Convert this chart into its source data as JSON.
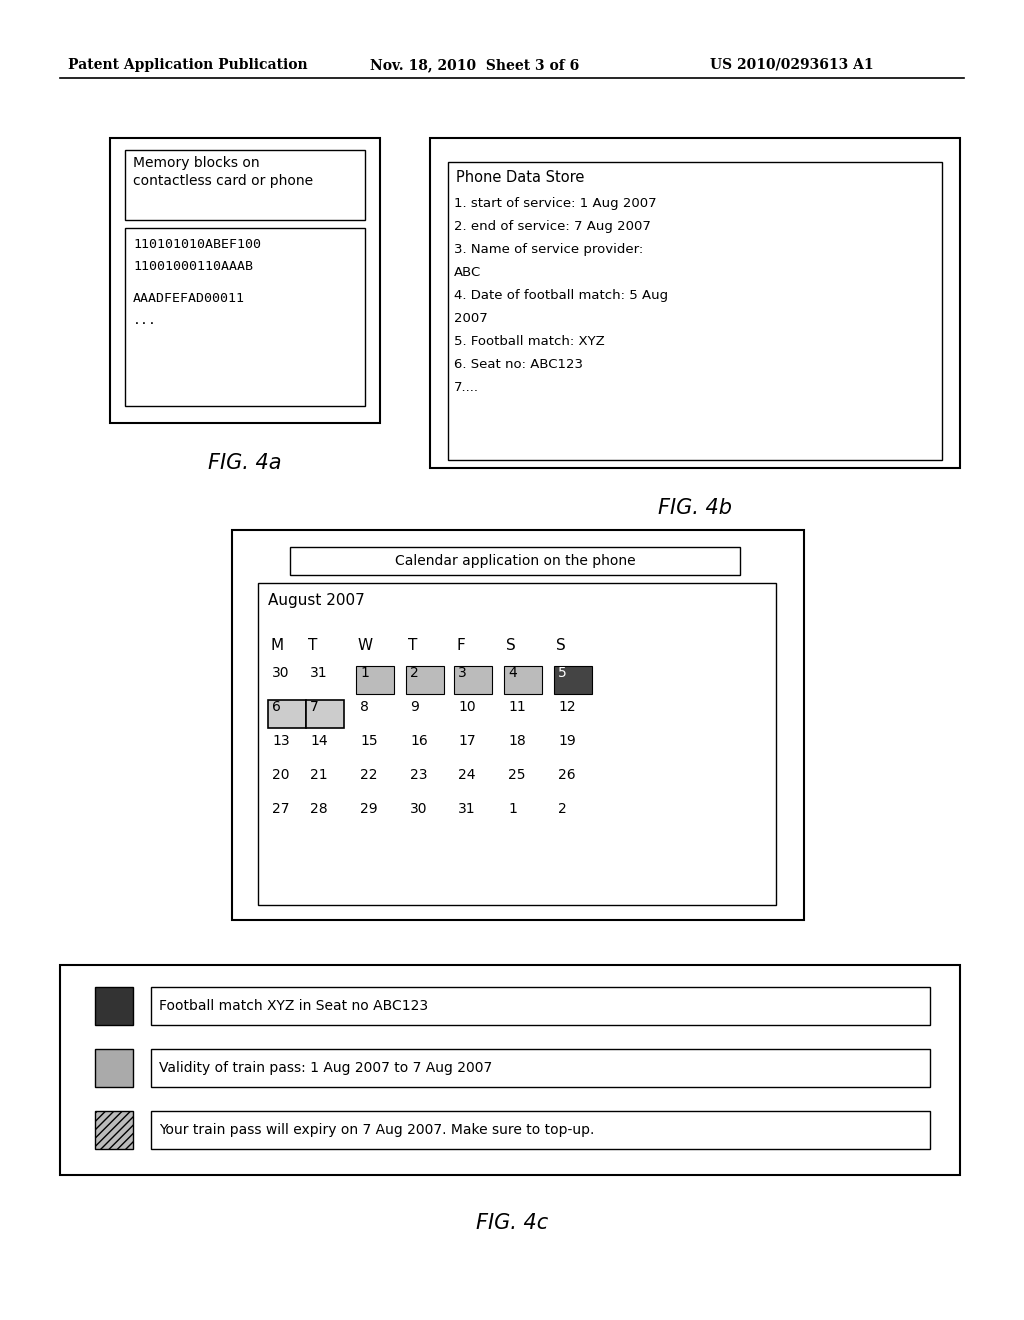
{
  "header_left": "Patent Application Publication",
  "header_mid": "Nov. 18, 2010  Sheet 3 of 6",
  "header_right": "US 2010/0293613 A1",
  "fig4a_title": "Memory blocks on\ncontactless card or phone",
  "fig4a_data_lines": [
    "110101010ABEF100",
    "11001000110AAAB",
    "",
    "AAADFEFAD00011",
    "..."
  ],
  "fig4a_caption": "FIG. 4a",
  "fig4b_title": "Phone Data Store",
  "fig4b_data": [
    "1. start of service: 1 Aug 2007",
    "2. end of service: 7 Aug 2007",
    "3. Name of service provider:",
    "ABC",
    "4. Date of football match: 5 Aug",
    "2007",
    "5. Football match: XYZ",
    "6. Seat no: ABC123",
    "7...."
  ],
  "fig4b_caption": "FIG. 4b",
  "fig4c_caption": "FIG. 4c",
  "calendar_title": "Calendar application on the phone",
  "calendar_month": "August 2007",
  "calendar_days_header": [
    "M",
    "T",
    "W",
    "T",
    "F",
    "S",
    "S"
  ],
  "calendar_rows": [
    [
      "30",
      "31",
      "1",
      "2",
      "3",
      "4",
      "5"
    ],
    [
      "6",
      "7",
      "8",
      "9",
      "10",
      "11",
      "12"
    ],
    [
      "13",
      "14",
      "15",
      "16",
      "17",
      "18",
      "19"
    ],
    [
      "20",
      "21",
      "22",
      "23",
      "24",
      "25",
      "26"
    ],
    [
      "27",
      "28",
      "29",
      "30",
      "31",
      "1",
      "2"
    ]
  ],
  "legend_items": [
    {
      "color": "#333333",
      "hatch": false,
      "text": "Football match XYZ in Seat no ABC123"
    },
    {
      "color": "#aaaaaa",
      "hatch": false,
      "text": "Validity of train pass: 1 Aug 2007 to 7 Aug 2007"
    },
    {
      "color": "#bbbbbb",
      "hatch": true,
      "text": "Your train pass will expiry on 7 Aug 2007. Make sure to top-up."
    }
  ],
  "bg_color": "#ffffff",
  "text_color": "#000000"
}
